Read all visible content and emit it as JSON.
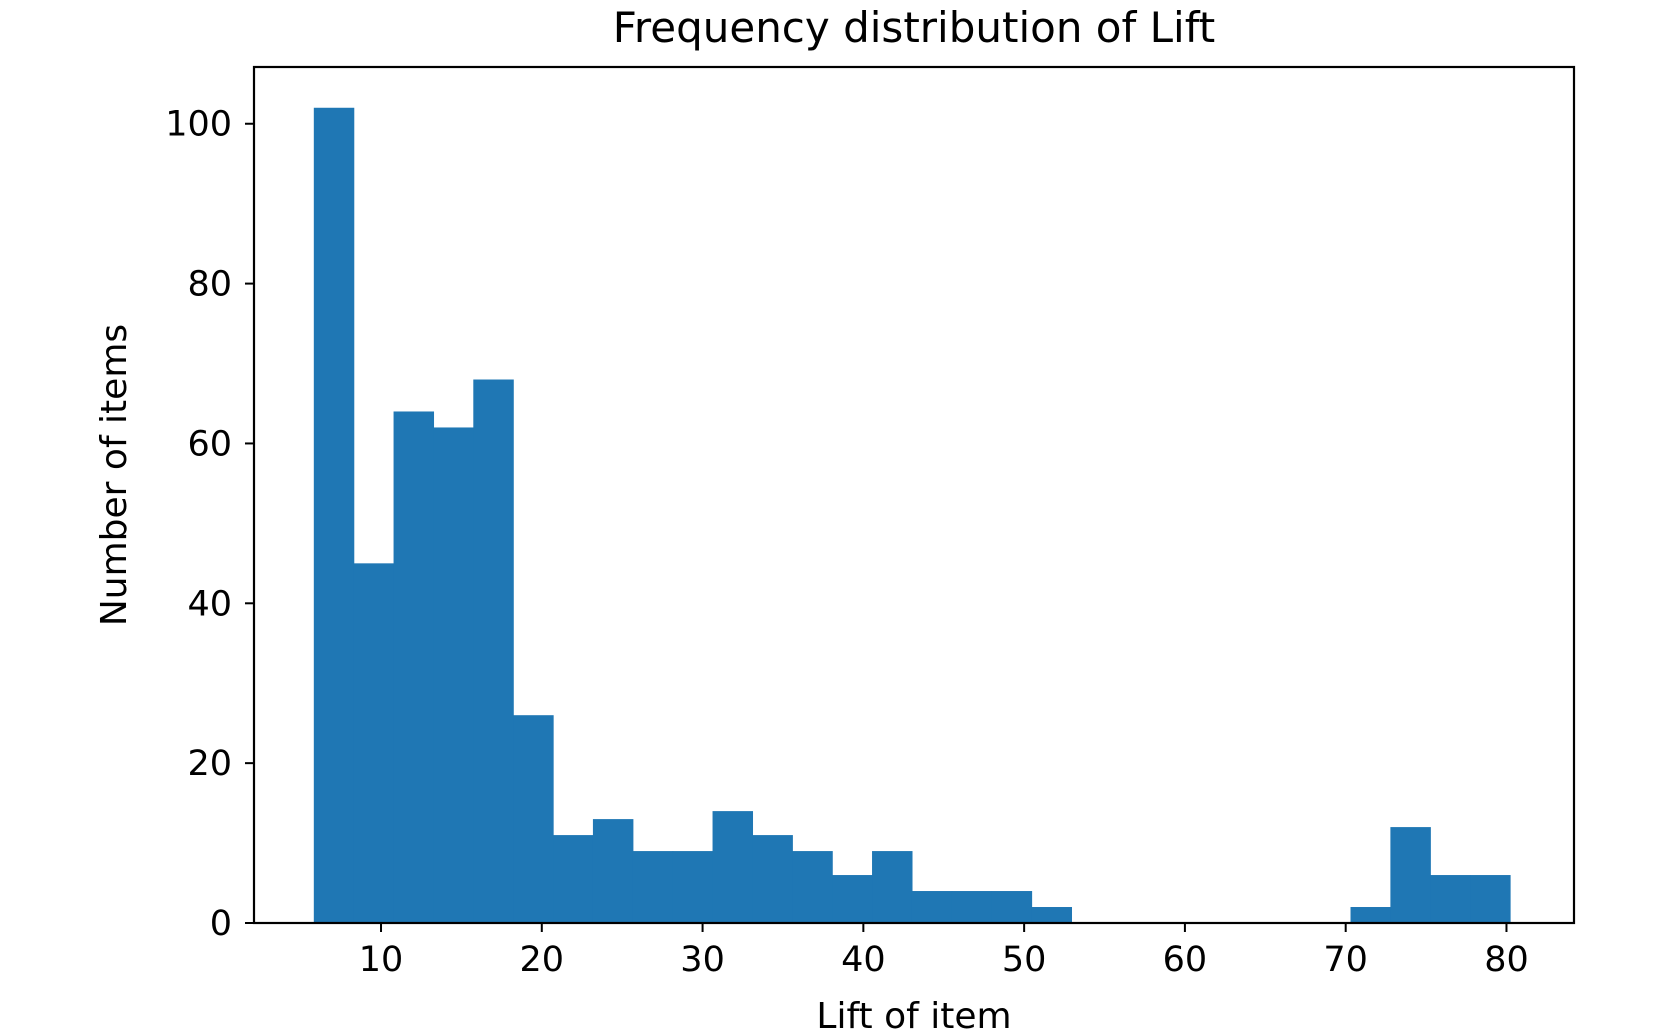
{
  "chart_data": {
    "type": "bar",
    "title": "Frequency distribution of Lift",
    "xlabel": "Lift of item",
    "ylabel": "Number of items",
    "xlim": [
      2.1,
      84.2
    ],
    "ylim": [
      0,
      107.1
    ],
    "x_ticks": [
      10,
      20,
      30,
      40,
      50,
      60,
      70,
      80
    ],
    "y_ticks": [
      0,
      20,
      40,
      60,
      80,
      100
    ],
    "grid": false,
    "legend": "none",
    "bar_color": "#1f77b4",
    "bins": [
      {
        "x0": 5.82,
        "x1": 8.3,
        "value": 102
      },
      {
        "x0": 8.3,
        "x1": 10.78,
        "value": 45
      },
      {
        "x0": 10.78,
        "x1": 13.26,
        "value": 64
      },
      {
        "x0": 13.26,
        "x1": 15.74,
        "value": 62
      },
      {
        "x0": 15.74,
        "x1": 18.22,
        "value": 68
      },
      {
        "x0": 18.22,
        "x1": 20.7,
        "value": 26
      },
      {
        "x0": 20.7,
        "x1": 23.18,
        "value": 11
      },
      {
        "x0": 23.18,
        "x1": 25.66,
        "value": 13
      },
      {
        "x0": 25.66,
        "x1": 28.14,
        "value": 9
      },
      {
        "x0": 28.14,
        "x1": 30.62,
        "value": 9
      },
      {
        "x0": 30.62,
        "x1": 33.1,
        "value": 14
      },
      {
        "x0": 33.1,
        "x1": 35.58,
        "value": 11
      },
      {
        "x0": 35.58,
        "x1": 38.06,
        "value": 9
      },
      {
        "x0": 38.06,
        "x1": 40.54,
        "value": 6
      },
      {
        "x0": 40.54,
        "x1": 43.02,
        "value": 9
      },
      {
        "x0": 43.02,
        "x1": 45.5,
        "value": 4
      },
      {
        "x0": 45.5,
        "x1": 47.98,
        "value": 4
      },
      {
        "x0": 47.98,
        "x1": 50.46,
        "value": 4
      },
      {
        "x0": 50.46,
        "x1": 52.94,
        "value": 2
      },
      {
        "x0": 52.94,
        "x1": 55.42,
        "value": 0
      },
      {
        "x0": 55.42,
        "x1": 57.9,
        "value": 0
      },
      {
        "x0": 57.9,
        "x1": 60.38,
        "value": 0
      },
      {
        "x0": 60.38,
        "x1": 62.86,
        "value": 0
      },
      {
        "x0": 62.86,
        "x1": 65.34,
        "value": 0
      },
      {
        "x0": 65.34,
        "x1": 67.82,
        "value": 0
      },
      {
        "x0": 67.82,
        "x1": 70.3,
        "value": 0
      },
      {
        "x0": 70.3,
        "x1": 72.78,
        "value": 2
      },
      {
        "x0": 72.78,
        "x1": 75.26,
        "value": 12
      },
      {
        "x0": 75.26,
        "x1": 77.74,
        "value": 6
      },
      {
        "x0": 77.74,
        "x1": 80.22,
        "value": 6
      }
    ]
  }
}
